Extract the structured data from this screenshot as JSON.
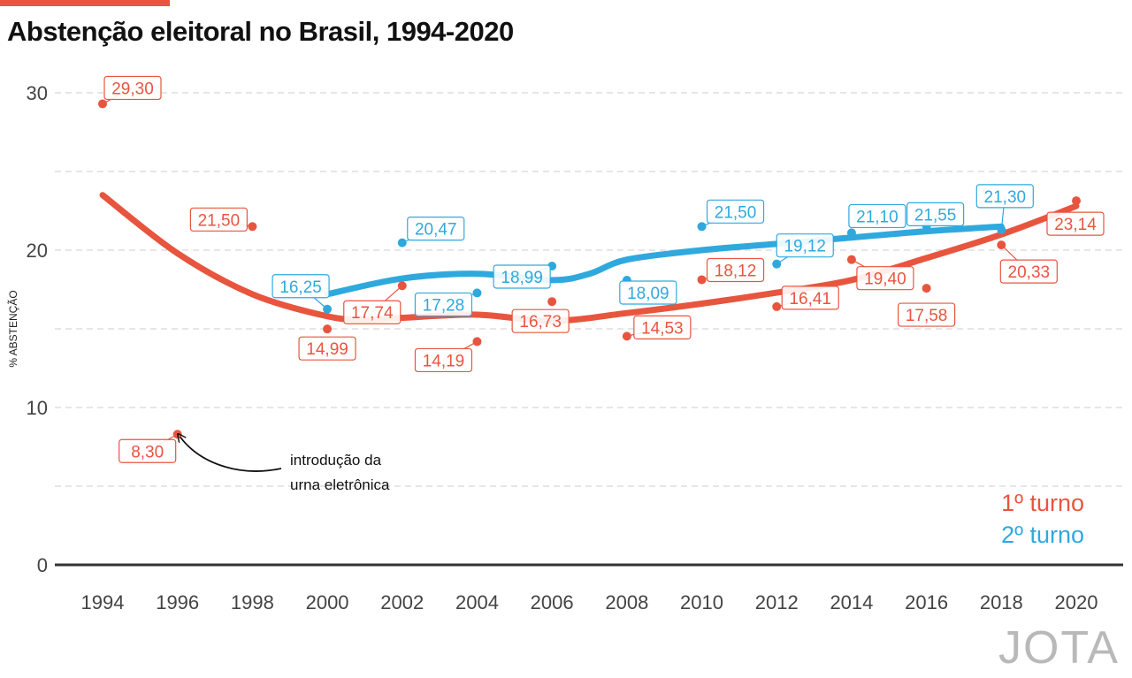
{
  "title": "Abstenção eleitoral no Brasil, 1994-2020",
  "brand": "JOTA",
  "colors": {
    "first_round": "#e8553f",
    "second_round": "#2fa9dd",
    "accent": "#e8553f"
  },
  "chart_data": {
    "type": "scatter",
    "title": "Abstenção eleitoral no Brasil, 1994-2020",
    "xlabel": "",
    "ylabel": "% ABSTENÇÃO",
    "xlim": [
      1994,
      2020
    ],
    "ylim": [
      0,
      30
    ],
    "x_ticks": [
      1994,
      1996,
      1998,
      2000,
      2002,
      2004,
      2006,
      2008,
      2010,
      2012,
      2014,
      2016,
      2018,
      2020
    ],
    "y_ticks": [
      0,
      10,
      20,
      30
    ],
    "grid": true,
    "legend_position": "bottom-right",
    "smoothed_trend_lines": true,
    "series": [
      {
        "name": "1º turno",
        "color": "#e8553f",
        "points": [
          {
            "x": 1994,
            "y": 29.3,
            "label": "29,30"
          },
          {
            "x": 1996,
            "y": 8.3,
            "label": "8,30"
          },
          {
            "x": 1998,
            "y": 21.5,
            "label": "21,50"
          },
          {
            "x": 2000,
            "y": 14.99,
            "label": "14,99"
          },
          {
            "x": 2002,
            "y": 17.74,
            "label": "17,74"
          },
          {
            "x": 2004,
            "y": 14.19,
            "label": "14,19"
          },
          {
            "x": 2006,
            "y": 16.73,
            "label": "16,73"
          },
          {
            "x": 2008,
            "y": 14.53,
            "label": "14,53"
          },
          {
            "x": 2010,
            "y": 18.12,
            "label": "18,12"
          },
          {
            "x": 2012,
            "y": 16.41,
            "label": "16,41"
          },
          {
            "x": 2014,
            "y": 19.4,
            "label": "19,40"
          },
          {
            "x": 2016,
            "y": 17.58,
            "label": "17,58"
          },
          {
            "x": 2018,
            "y": 20.33,
            "label": "20,33"
          },
          {
            "x": 2020,
            "y": 23.14,
            "label": "23,14"
          }
        ],
        "trend": [
          [
            1994,
            23.5
          ],
          [
            1996,
            19.8
          ],
          [
            1998,
            17.2
          ],
          [
            2000,
            15.8
          ],
          [
            2001,
            15.6
          ],
          [
            2002,
            15.7
          ],
          [
            2004,
            15.9
          ],
          [
            2006,
            15.5
          ],
          [
            2008,
            16.0
          ],
          [
            2010,
            16.6
          ],
          [
            2012,
            17.3
          ],
          [
            2014,
            18.1
          ],
          [
            2016,
            19.5
          ],
          [
            2018,
            21.0
          ],
          [
            2020,
            22.8
          ]
        ]
      },
      {
        "name": "2º turno",
        "color": "#2fa9dd",
        "points": [
          {
            "x": 2000,
            "y": 16.25,
            "label": "16,25"
          },
          {
            "x": 2002,
            "y": 20.47,
            "label": "20,47"
          },
          {
            "x": 2004,
            "y": 17.28,
            "label": "17,28"
          },
          {
            "x": 2006,
            "y": 18.99,
            "label": "18,99"
          },
          {
            "x": 2008,
            "y": 18.09,
            "label": "18,09"
          },
          {
            "x": 2010,
            "y": 21.5,
            "label": "21,50"
          },
          {
            "x": 2012,
            "y": 19.12,
            "label": "19,12"
          },
          {
            "x": 2014,
            "y": 21.1,
            "label": "21,10"
          },
          {
            "x": 2016,
            "y": 21.55,
            "label": "21,55"
          },
          {
            "x": 2018,
            "y": 21.3,
            "label": "21,30"
          }
        ],
        "trend": [
          [
            2000,
            17.2
          ],
          [
            2002,
            18.2
          ],
          [
            2004,
            18.5
          ],
          [
            2006,
            18.1
          ],
          [
            2007,
            18.5
          ],
          [
            2008,
            19.4
          ],
          [
            2010,
            20.0
          ],
          [
            2012,
            20.4
          ],
          [
            2014,
            20.8
          ],
          [
            2016,
            21.2
          ],
          [
            2018,
            21.5
          ]
        ]
      }
    ],
    "annotation": {
      "x": 1996,
      "y": 8.3,
      "lines": [
        "introdução da",
        "urna eletrônica"
      ]
    }
  }
}
